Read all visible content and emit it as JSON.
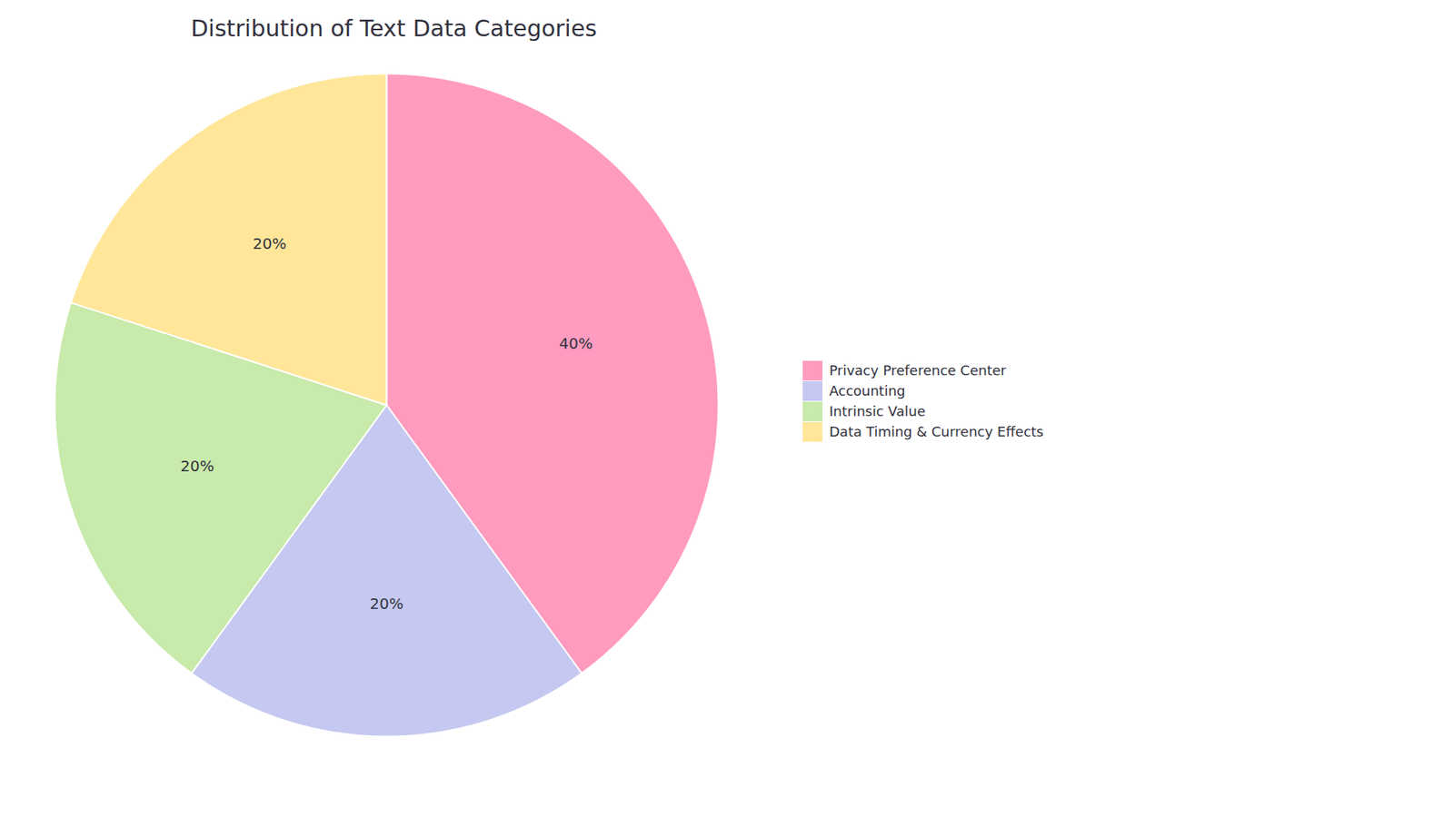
{
  "chart_data": {
    "type": "pie",
    "title": "Distribution of Text Data Categories",
    "categories": [
      "Privacy Preference Center",
      "Accounting",
      "Intrinsic Value",
      "Data Timing & Currency Effects"
    ],
    "values": [
      40,
      20,
      20,
      20
    ],
    "value_labels": [
      "40%",
      "20%",
      "20%",
      "20%"
    ],
    "colors": [
      "#FF9BBF",
      "#C5C8F0",
      "#C8EAAA",
      "#FFE699"
    ],
    "data_labels": true,
    "legend": "right"
  }
}
